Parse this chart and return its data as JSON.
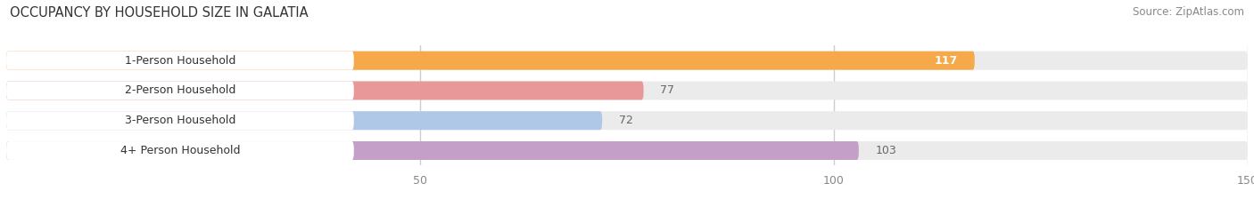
{
  "title": "OCCUPANCY BY HOUSEHOLD SIZE IN GALATIA",
  "source": "Source: ZipAtlas.com",
  "categories": [
    "1-Person Household",
    "2-Person Household",
    "3-Person Household",
    "4+ Person Household"
  ],
  "values": [
    117,
    77,
    72,
    103
  ],
  "bar_colors": [
    "#F5A94A",
    "#E89898",
    "#B0C8E8",
    "#C4A0C8"
  ],
  "value_colors": [
    "#ffffff",
    "#888888",
    "#888888",
    "#888888"
  ],
  "xlim": [
    0,
    150
  ],
  "xticks": [
    50,
    100,
    150
  ],
  "title_fontsize": 10.5,
  "source_fontsize": 8.5,
  "label_fontsize": 9,
  "value_fontsize": 9,
  "tick_fontsize": 9,
  "background_color": "#ffffff",
  "bar_background_color": "#ebebeb",
  "label_box_color": "#ffffff",
  "grid_color": "#cccccc"
}
